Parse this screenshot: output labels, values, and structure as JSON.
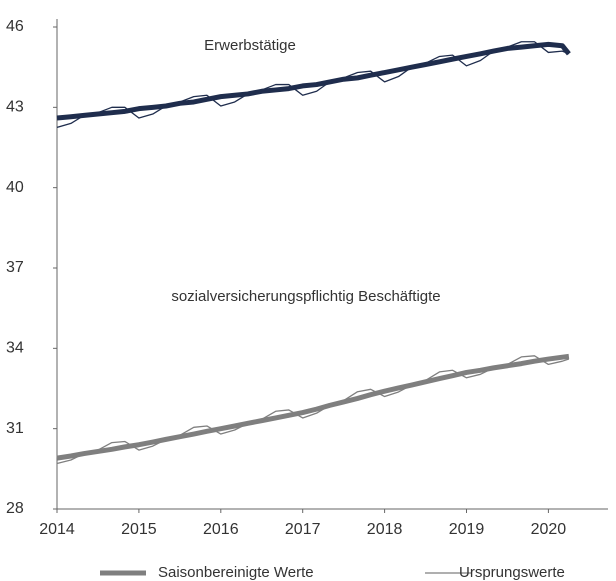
{
  "chart_data": {
    "type": "line",
    "x": [
      2014,
      2014.17,
      2014.33,
      2014.5,
      2014.67,
      2014.83,
      2015,
      2015.17,
      2015.33,
      2015.5,
      2015.67,
      2015.83,
      2016,
      2016.17,
      2016.33,
      2016.5,
      2016.67,
      2016.83,
      2017,
      2017.17,
      2017.33,
      2017.5,
      2017.67,
      2017.83,
      2018,
      2018.17,
      2018.33,
      2018.5,
      2018.67,
      2018.83,
      2019,
      2019.17,
      2019.33,
      2019.5,
      2019.67,
      2019.83,
      2020,
      2020.17,
      2020.25
    ],
    "series": [
      {
        "name": "Saisonbereinigte Werte",
        "label": "Erwerbstätige",
        "color": "#1f2d4d",
        "width": 5,
        "values": [
          42.6,
          42.65,
          42.7,
          42.75,
          42.8,
          42.85,
          42.95,
          43.0,
          43.05,
          43.15,
          43.2,
          43.3,
          43.4,
          43.45,
          43.5,
          43.6,
          43.65,
          43.7,
          43.8,
          43.85,
          43.95,
          44.05,
          44.1,
          44.2,
          44.3,
          44.4,
          44.5,
          44.6,
          44.7,
          44.8,
          44.9,
          45.0,
          45.1,
          45.2,
          45.25,
          45.3,
          45.35,
          45.3,
          45.0
        ]
      },
      {
        "name": "Ursprungswerte",
        "color": "#1f2d4d",
        "width": 1.3,
        "values": [
          42.25,
          42.4,
          42.7,
          42.8,
          43.0,
          43.0,
          42.6,
          42.75,
          43.05,
          43.2,
          43.4,
          43.45,
          43.05,
          43.2,
          43.5,
          43.65,
          43.85,
          43.85,
          43.45,
          43.6,
          43.95,
          44.1,
          44.3,
          44.35,
          43.95,
          44.15,
          44.5,
          44.65,
          44.9,
          44.95,
          44.55,
          44.75,
          45.1,
          45.25,
          45.45,
          45.45,
          45.05,
          45.1,
          45.0
        ]
      },
      {
        "name": "Saisonbereinigte Werte",
        "label": "sozialversicherungspflichtig Beschäftigte",
        "color": "#7f7f7f",
        "width": 5,
        "values": [
          29.9,
          29.98,
          30.07,
          30.15,
          30.23,
          30.32,
          30.4,
          30.5,
          30.6,
          30.7,
          30.8,
          30.9,
          31.0,
          31.1,
          31.2,
          31.3,
          31.4,
          31.5,
          31.6,
          31.73,
          31.87,
          32.0,
          32.13,
          32.27,
          32.4,
          32.52,
          32.63,
          32.75,
          32.87,
          32.98,
          33.1,
          33.18,
          33.27,
          33.35,
          33.43,
          33.52,
          33.6,
          33.67,
          33.7
        ]
      },
      {
        "name": "Ursprungswerte",
        "color": "#7f7f7f",
        "width": 1.3,
        "values": [
          29.7,
          29.83,
          30.07,
          30.2,
          30.48,
          30.52,
          30.2,
          30.35,
          30.6,
          30.75,
          31.05,
          31.1,
          30.8,
          30.95,
          31.2,
          31.35,
          31.65,
          31.7,
          31.4,
          31.58,
          31.87,
          32.05,
          32.38,
          32.47,
          32.2,
          32.37,
          32.63,
          32.8,
          33.12,
          33.18,
          32.9,
          33.03,
          33.27,
          33.4,
          33.68,
          33.72,
          33.4,
          33.52,
          33.6
        ]
      }
    ],
    "xlim": [
      2014,
      2020.63
    ],
    "xticks": [
      2014,
      2015,
      2016,
      2017,
      2018,
      2019,
      2020
    ],
    "ylim": [
      28,
      46
    ],
    "yticks": [
      28,
      31,
      34,
      37,
      40,
      43,
      46
    ],
    "grid": false
  }
}
